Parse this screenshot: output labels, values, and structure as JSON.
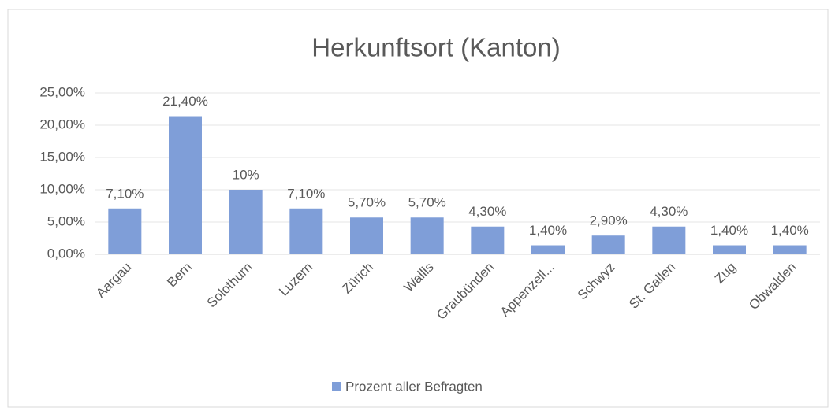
{
  "chart_data": {
    "type": "bar",
    "title": "Herkunftsort (Kanton)",
    "categories": [
      "Aargau",
      "Bern",
      "Solothurn",
      "Luzern",
      "Zürich",
      "Wallis",
      "Graubünden",
      "Appenzell...",
      "Schwyz",
      "St. Gallen",
      "Zug",
      "Obwalden"
    ],
    "series": [
      {
        "name": "Prozent aller Befragten",
        "color": "#7f9ed8",
        "values": [
          7.1,
          21.4,
          10,
          7.1,
          5.7,
          5.7,
          4.3,
          1.4,
          2.9,
          4.3,
          1.4,
          1.4
        ],
        "value_labels": [
          "7,10%",
          "21,40%",
          "10%",
          "7,10%",
          "5,70%",
          "5,70%",
          "4,30%",
          "1,40%",
          "2,90%",
          "4,30%",
          "1,40%",
          "1,40%"
        ]
      }
    ],
    "ylim": [
      0,
      25
    ],
    "yticks": [
      {
        "value": 0,
        "label": "0,00%"
      },
      {
        "value": 5,
        "label": "5,00%"
      },
      {
        "value": 10,
        "label": "10,00%"
      },
      {
        "value": 15,
        "label": "15,00%"
      },
      {
        "value": 20,
        "label": "20,00%"
      },
      {
        "value": 25,
        "label": "25,00%"
      }
    ],
    "grid": true,
    "legend": "bottom"
  }
}
